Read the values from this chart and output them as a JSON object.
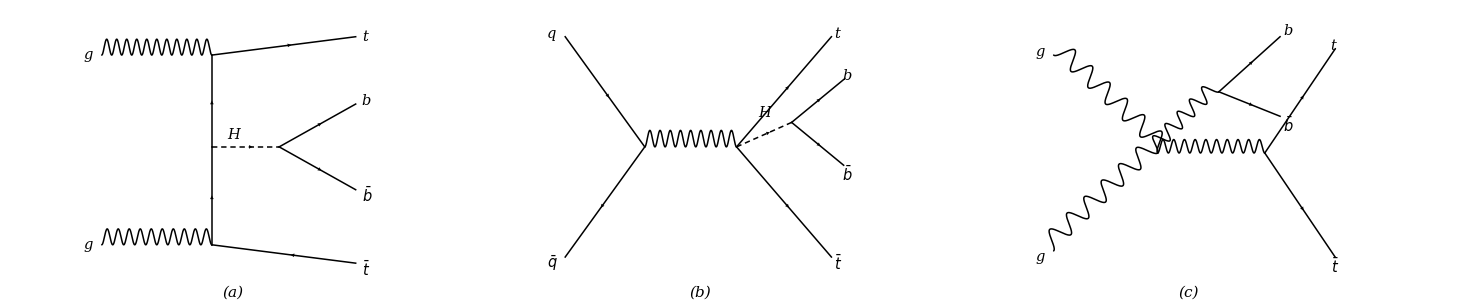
{
  "fig_width": 14.58,
  "fig_height": 3.06,
  "background": "#ffffff",
  "line_width": 1.1,
  "arrow_mutation_scale": 7,
  "panels": [
    {
      "label": "(a)",
      "xlim": [
        0,
        1
      ],
      "ylim": [
        0,
        1
      ]
    },
    {
      "label": "(b)",
      "xlim": [
        0,
        1
      ],
      "ylim": [
        0,
        1
      ]
    },
    {
      "label": "(c)",
      "xlim": [
        0,
        1
      ],
      "ylim": [
        0,
        1
      ]
    }
  ]
}
